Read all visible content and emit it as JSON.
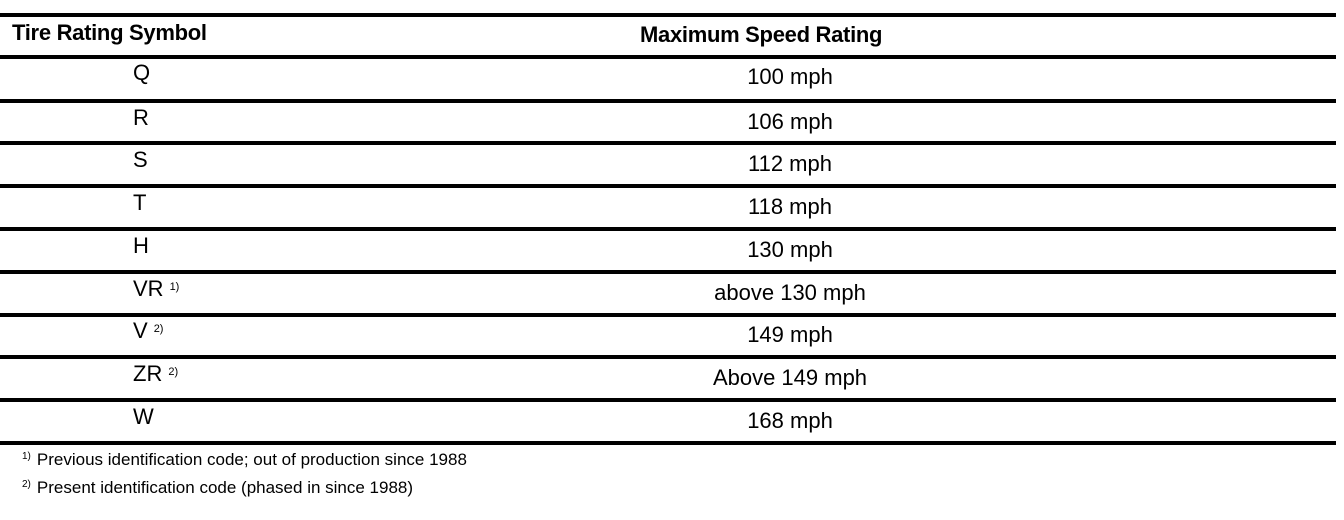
{
  "table": {
    "headers": {
      "symbol": "Tire Rating Symbol",
      "speed": "Maximum Speed Rating"
    },
    "rows": [
      {
        "symbol": "Q",
        "mark": "",
        "speed": "100 mph"
      },
      {
        "symbol": "R",
        "mark": "",
        "speed": "106 mph"
      },
      {
        "symbol": "S",
        "mark": "",
        "speed": "112 mph"
      },
      {
        "symbol": "T",
        "mark": "",
        "speed": "118 mph"
      },
      {
        "symbol": "H",
        "mark": "",
        "speed": "130 mph"
      },
      {
        "symbol": "VR",
        "mark": "1)",
        "speed": "above 130 mph"
      },
      {
        "symbol": "V",
        "mark": "2)",
        "speed": "149 mph"
      },
      {
        "symbol": "ZR",
        "mark": "2)",
        "speed": "Above 149 mph"
      },
      {
        "symbol": "W",
        "mark": "",
        "speed": "168 mph"
      }
    ]
  },
  "footnotes": [
    {
      "mark": "1)",
      "text": "Previous identification code; out of production since 1988"
    },
    {
      "mark": "2)",
      "text": "Present identification code (phased in since 1988)"
    }
  ]
}
